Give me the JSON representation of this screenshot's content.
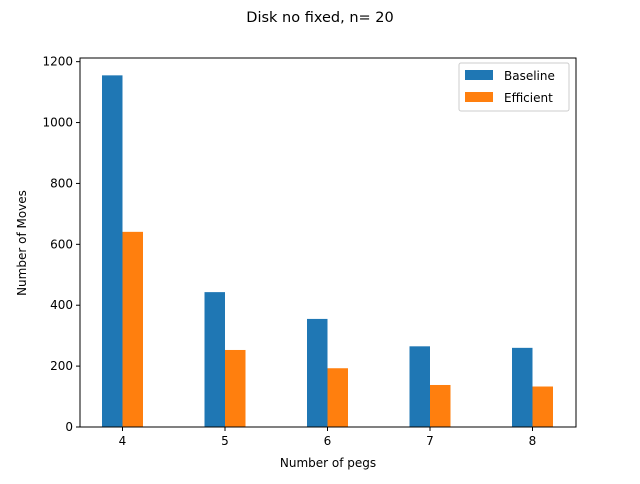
{
  "chart_data": {
    "type": "bar",
    "title": "Disk no fixed, n= 20",
    "xlabel": "Number of pegs",
    "ylabel": "Number of Moves",
    "categories": [
      "4",
      "5",
      "6",
      "7",
      "8"
    ],
    "series": [
      {
        "name": "Baseline",
        "color": "#1f77b4",
        "values": [
          1155,
          443,
          355,
          265,
          260
        ]
      },
      {
        "name": "Efficient",
        "color": "#ff7f0e",
        "values": [
          641,
          253,
          193,
          138,
          133
        ]
      }
    ],
    "ylim": [
      0,
      1212
    ],
    "yticks": [
      0,
      200,
      400,
      600,
      800,
      1000,
      1200
    ],
    "grid": false,
    "legend_position": "top-right"
  }
}
